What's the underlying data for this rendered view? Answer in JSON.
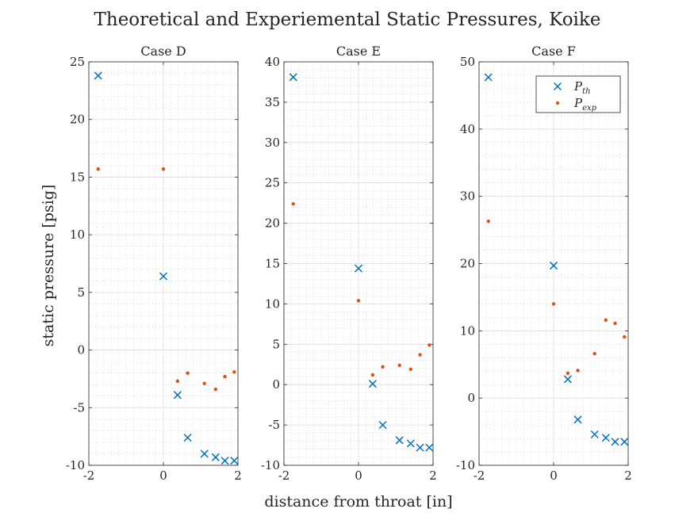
{
  "figure": {
    "title": "Theoretical and Experiemental Static Pressures, Koike",
    "xlabel": "distance from throat [in]",
    "ylabel": "static pressure [psig]"
  },
  "legend": {
    "location": "top-right of Case F",
    "entries": [
      {
        "label": "P",
        "sub": "th",
        "marker": "x",
        "color": "#0072BD"
      },
      {
        "label": "P",
        "sub": "exp",
        "marker": "dot",
        "color": "#D95319"
      }
    ]
  },
  "chart_data": [
    {
      "type": "scatter",
      "title": "Case D",
      "xlim": [
        -2,
        2
      ],
      "ylim": [
        -10,
        25
      ],
      "xticks": [
        -2,
        0,
        2
      ],
      "yticks": [
        -10,
        -5,
        0,
        5,
        10,
        15,
        20,
        25
      ],
      "grid": true,
      "minor_grid": true,
      "series": [
        {
          "name": "P_th",
          "marker": "x",
          "color": "#0072BD",
          "x": [
            -1.75,
            0.0,
            0.38,
            0.65,
            1.1,
            1.4,
            1.65,
            1.9
          ],
          "y": [
            23.8,
            6.4,
            -3.9,
            -7.6,
            -9.0,
            -9.3,
            -9.6,
            -9.6
          ]
        },
        {
          "name": "P_exp",
          "marker": "dot",
          "color": "#D95319",
          "x": [
            -1.75,
            0.0,
            0.38,
            0.65,
            1.1,
            1.4,
            1.65,
            1.9
          ],
          "y": [
            15.7,
            15.7,
            -2.7,
            -2.0,
            -2.9,
            -3.4,
            -2.3,
            -1.9
          ]
        }
      ]
    },
    {
      "type": "scatter",
      "title": "Case E",
      "xlim": [
        -2,
        2
      ],
      "ylim": [
        -10,
        40
      ],
      "xticks": [
        -2,
        0,
        2
      ],
      "yticks": [
        -10,
        -5,
        0,
        5,
        10,
        15,
        20,
        25,
        30,
        35,
        40
      ],
      "grid": true,
      "minor_grid": true,
      "series": [
        {
          "name": "P_th",
          "marker": "x",
          "color": "#0072BD",
          "x": [
            -1.75,
            0.0,
            0.38,
            0.65,
            1.1,
            1.4,
            1.65,
            1.9
          ],
          "y": [
            38.1,
            14.4,
            0.1,
            -5.0,
            -6.9,
            -7.3,
            -7.8,
            -7.8
          ]
        },
        {
          "name": "P_exp",
          "marker": "dot",
          "color": "#D95319",
          "x": [
            -1.75,
            0.0,
            0.38,
            0.65,
            1.1,
            1.4,
            1.65,
            1.9
          ],
          "y": [
            22.4,
            10.4,
            1.2,
            2.2,
            2.4,
            1.9,
            3.7,
            4.9
          ]
        }
      ]
    },
    {
      "type": "scatter",
      "title": "Case F",
      "xlim": [
        -2,
        2
      ],
      "ylim": [
        -10,
        50
      ],
      "xticks": [
        -2,
        0,
        2
      ],
      "yticks": [
        -10,
        0,
        10,
        20,
        30,
        40,
        50
      ],
      "grid": true,
      "minor_grid": true,
      "series": [
        {
          "name": "P_th",
          "marker": "x",
          "color": "#0072BD",
          "x": [
            -1.75,
            0.0,
            0.38,
            0.65,
            1.1,
            1.4,
            1.65,
            1.9
          ],
          "y": [
            47.7,
            19.7,
            2.8,
            -3.2,
            -5.4,
            -5.9,
            -6.5,
            -6.5
          ]
        },
        {
          "name": "P_exp",
          "marker": "dot",
          "color": "#D95319",
          "x": [
            -1.75,
            0.0,
            0.38,
            0.65,
            1.1,
            1.4,
            1.65,
            1.9
          ],
          "y": [
            26.3,
            14.0,
            3.7,
            4.1,
            6.6,
            11.6,
            11.1,
            9.1
          ]
        }
      ]
    }
  ]
}
